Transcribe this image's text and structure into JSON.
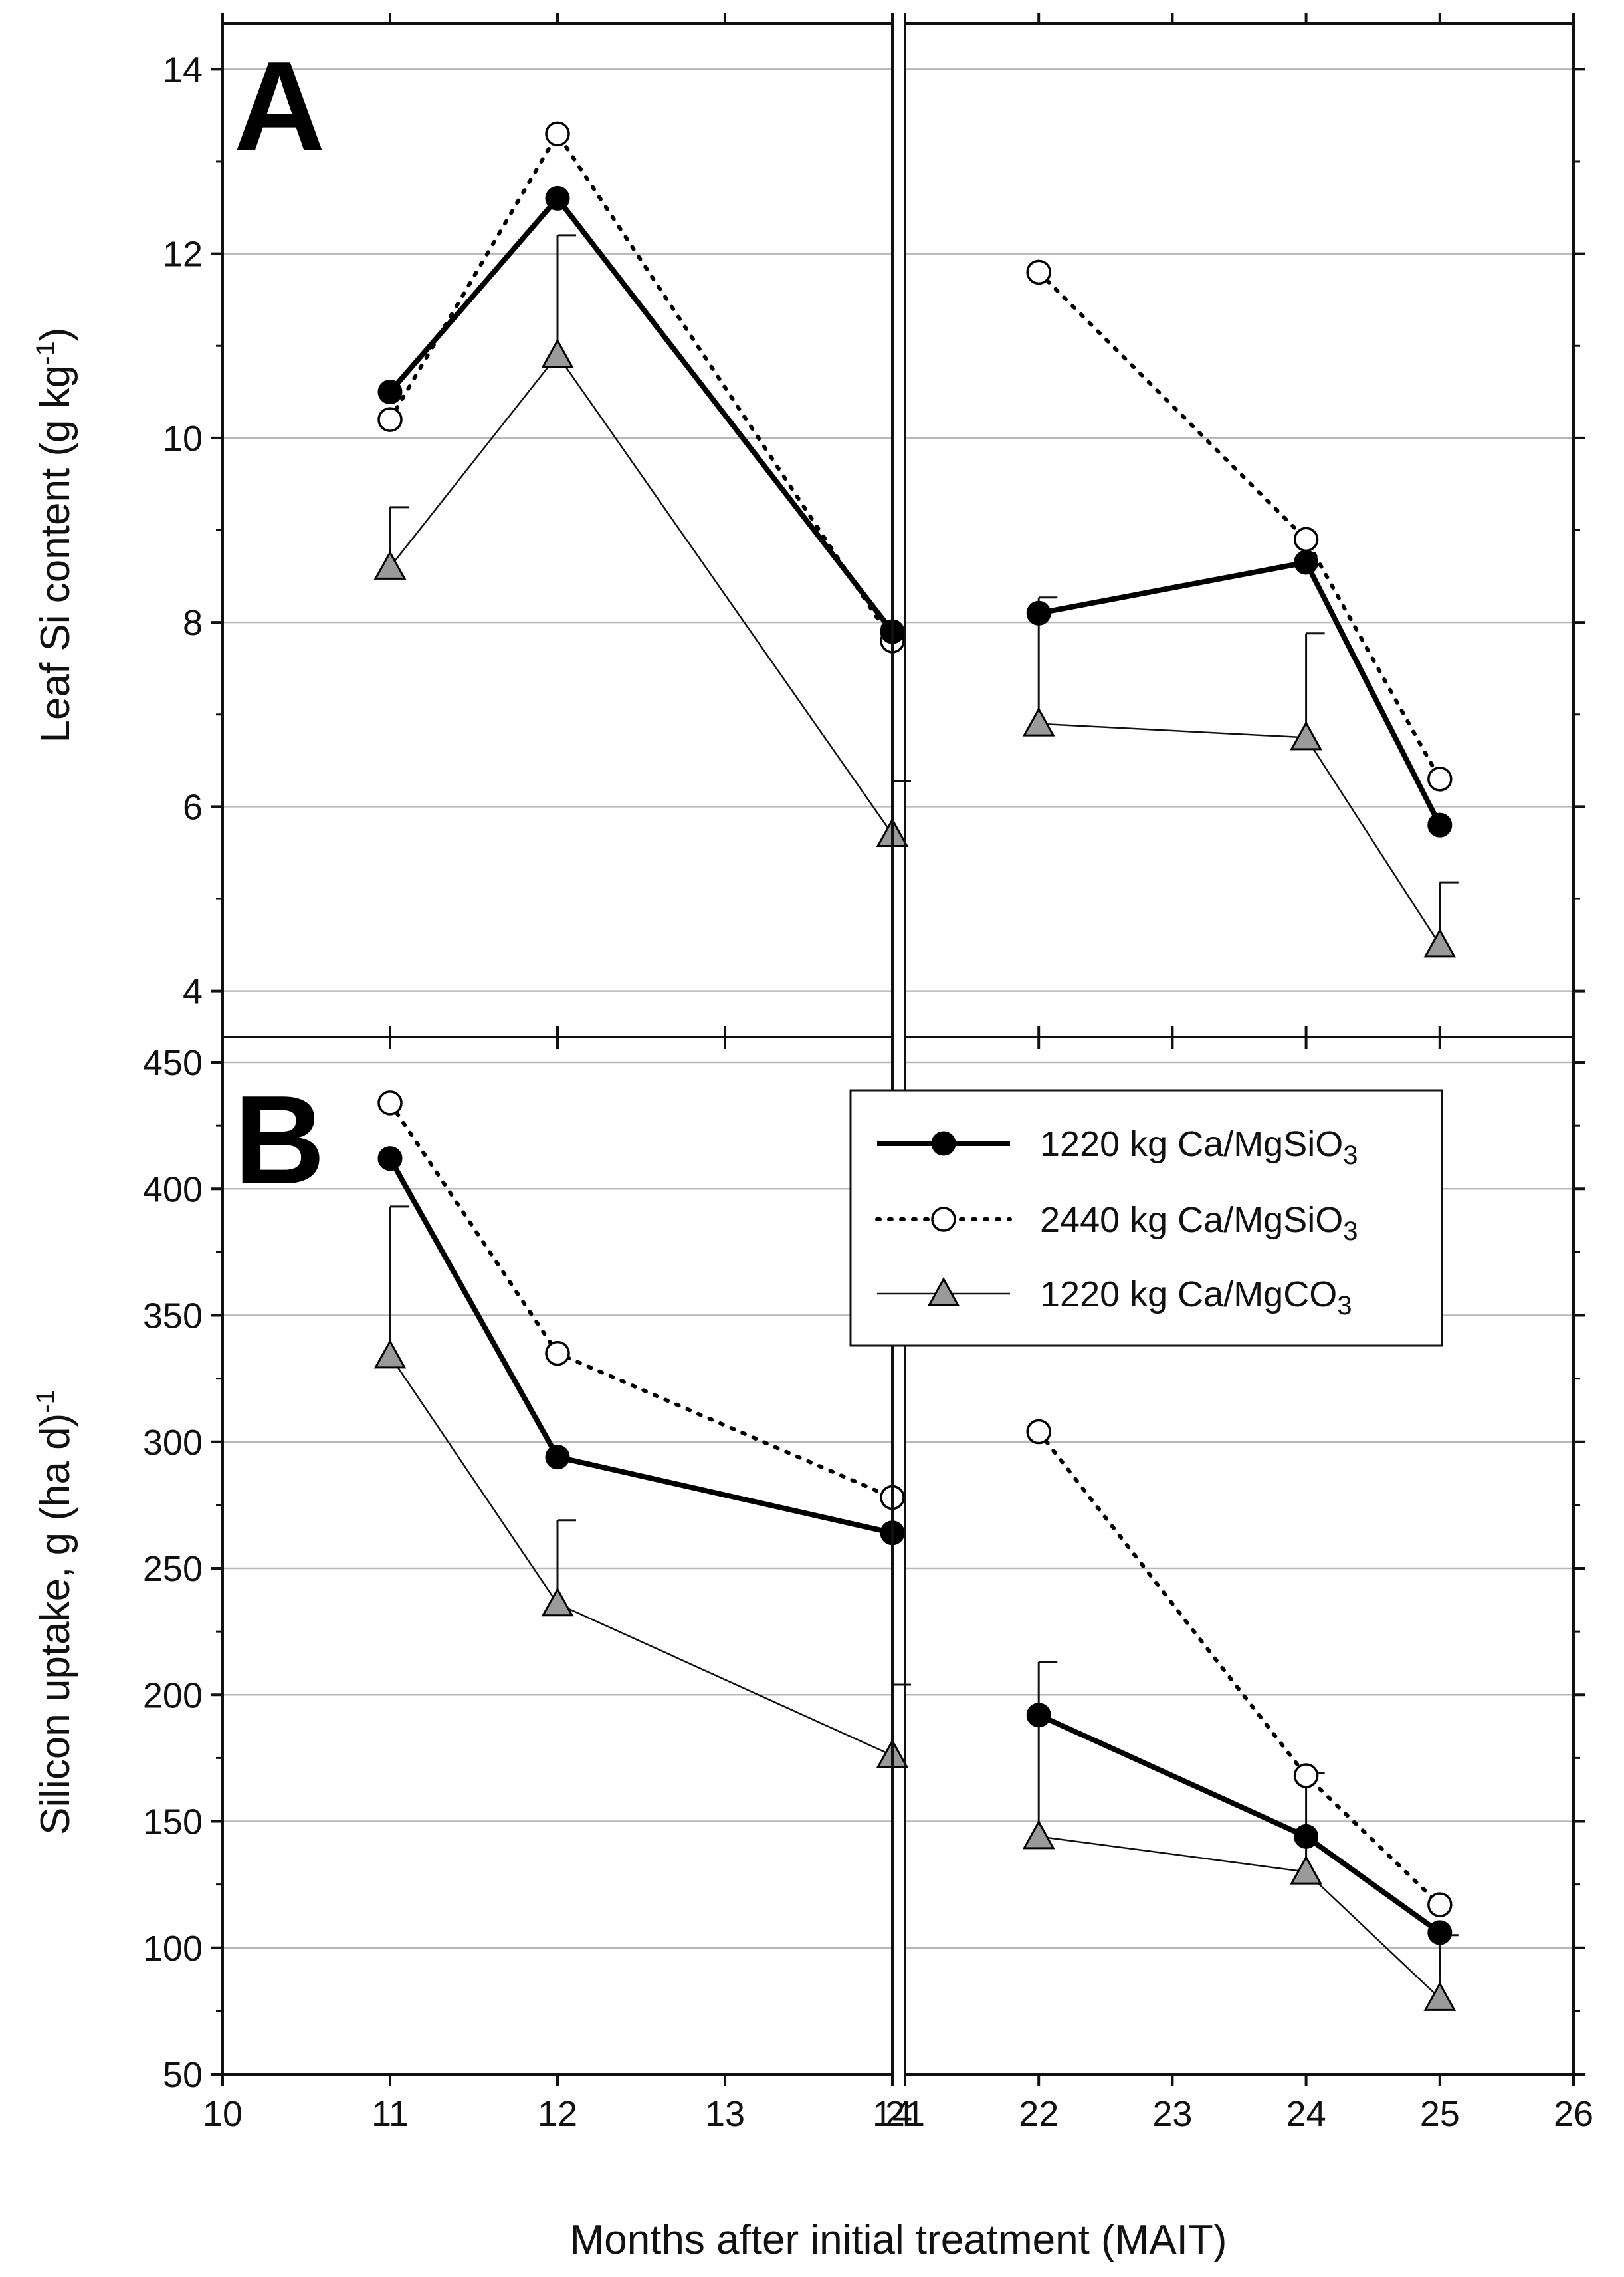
{
  "chart_data": [
    {
      "type": "line",
      "panel_label": "A",
      "ylabel": "Leaf Si content (g kg",
      "ylabel_sup": "-1",
      "ylabel_close": ")",
      "ylim": [
        3.5,
        14.5
      ],
      "yticks": [
        4,
        6,
        8,
        10,
        12,
        14
      ],
      "grid": true,
      "x": [
        11,
        12,
        14,
        22,
        24,
        25
      ],
      "series": [
        {
          "name": "1220 kg Ca/MgSiO3",
          "values": [
            10.5,
            12.6,
            7.9,
            8.1,
            8.65,
            5.8
          ]
        },
        {
          "name": "2440 kg Ca/MgSiO3",
          "values": [
            10.2,
            13.3,
            7.8,
            11.8,
            8.9,
            6.3
          ]
        },
        {
          "name": "1220 kg Ca/MgCO3",
          "values": [
            8.6,
            10.9,
            5.7,
            6.9,
            6.75,
            4.5
          ]
        }
      ],
      "error_bars": [
        9.25,
        12.2,
        6.28,
        8.27,
        7.88,
        5.18
      ]
    },
    {
      "type": "line",
      "panel_label": "B",
      "ylabel": "Silicon uptake, g (ha d)",
      "ylabel_sup": "-1",
      "ylim": [
        50,
        460
      ],
      "yticks": [
        50,
        100,
        150,
        200,
        250,
        300,
        350,
        400,
        450
      ],
      "grid": true,
      "x": [
        11,
        12,
        14,
        22,
        24,
        25
      ],
      "series": [
        {
          "name": "1220 kg Ca/MgSiO3",
          "values": [
            412,
            294,
            264,
            192,
            144,
            106
          ]
        },
        {
          "name": "2440 kg Ca/MgSiO3",
          "values": [
            434,
            335,
            278,
            304,
            168,
            117
          ]
        },
        {
          "name": "1220 kg Ca/MgCO3",
          "values": [
            334,
            236,
            176,
            144,
            130,
            80
          ]
        }
      ],
      "error_bars": [
        393,
        269,
        204,
        213,
        169,
        105
      ]
    }
  ],
  "x_axis": {
    "label": "Months after initial treatment (MAIT)",
    "left_segment_ticks": [
      "10",
      "11",
      "12",
      "13",
      "14"
    ],
    "right_segment_ticks": [
      "21",
      "22",
      "23",
      "24",
      "25",
      "26"
    ]
  },
  "legend": {
    "placement": "top-right of panel B",
    "entries": [
      {
        "base": "1220 kg Ca/MgSiO",
        "sub": "3"
      },
      {
        "base": "2440 kg Ca/MgSiO",
        "sub": "3"
      },
      {
        "base": "1220 kg Ca/MgCO",
        "sub": "3"
      }
    ]
  },
  "colors": {
    "axis": "#111111",
    "grid": "#b8b8b8",
    "series_solid": "#000000",
    "series_dotted": "#000000",
    "series_triangle_fill": "#9a9a9a"
  }
}
